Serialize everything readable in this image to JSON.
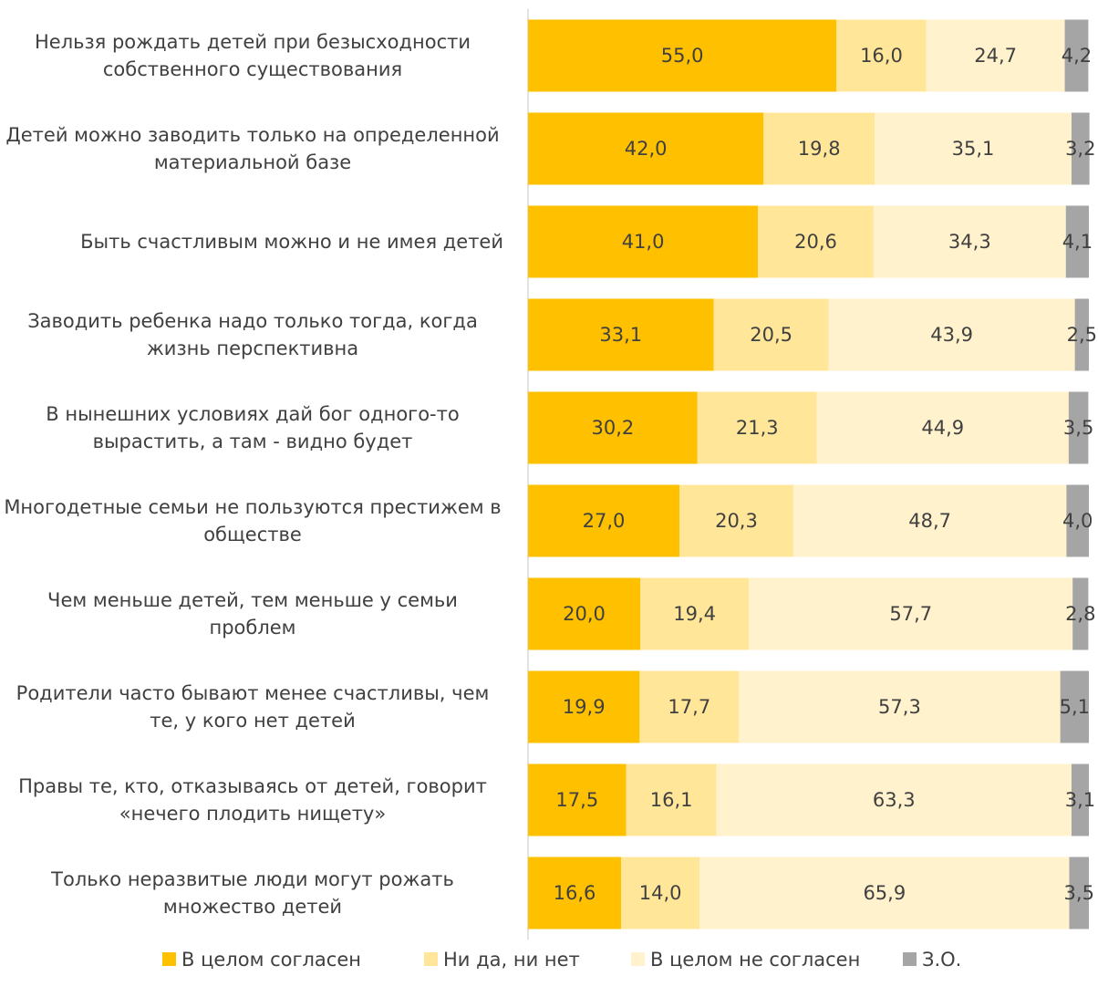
{
  "chart_data": {
    "type": "stacked_barh",
    "categories": [
      "Нельзя рождать детей при безысходности собственного существования",
      "Детей можно заводить только на определенной материальной базе",
      "Быть счастливым можно и не имея детей",
      "Заводить ребенка надо только тогда, когда жизнь перспективна",
      "В нынешних условиях дай бог одного-то вырастить, а там - видно будет",
      "Многодетные семьи не пользуются престижем в обществе",
      "Чем меньше детей, тем меньше у семьи проблем",
      "Родители часто бывают менее счастливы, чем те, у кого нет детей",
      "Правы те, кто, отказываясь от детей, говорит «нечего плодить нищету»",
      "Только неразвитые люди могут рожать множество детей"
    ],
    "series": [
      {
        "name": "В целом согласен",
        "color": "#FFC000",
        "values": [
          55.0,
          42.0,
          41.0,
          33.1,
          30.2,
          27.0,
          20.0,
          19.9,
          17.5,
          16.6
        ],
        "value_labels": [
          "55,0",
          "42,0",
          "41,0",
          "33,1",
          "30,2",
          "27,0",
          "20,0",
          "19,9",
          "17,5",
          "16,6"
        ]
      },
      {
        "name": "Ни да, ни нет",
        "color": "#FFE699",
        "values": [
          16.0,
          19.8,
          20.6,
          20.5,
          21.3,
          20.3,
          19.4,
          17.7,
          16.1,
          14.0
        ],
        "value_labels": [
          "16,0",
          "19,8",
          "20,6",
          "20,5",
          "21,3",
          "20,3",
          "19,4",
          "17,7",
          "16,1",
          "14,0"
        ]
      },
      {
        "name": "В целом не согласен",
        "color": "#FFF2CC",
        "values": [
          24.7,
          35.1,
          34.3,
          43.9,
          44.9,
          48.7,
          57.7,
          57.3,
          63.3,
          65.9
        ],
        "value_labels": [
          "24,7",
          "35,1",
          "34,3",
          "43,9",
          "44,9",
          "48,7",
          "57,7",
          "57,3",
          "63,3",
          "65,9"
        ]
      },
      {
        "name": "З.О.",
        "color": "#A5A5A5",
        "values": [
          4.2,
          3.2,
          4.1,
          2.5,
          3.5,
          4.0,
          2.8,
          5.1,
          3.1,
          3.5
        ],
        "value_labels": [
          "4,2",
          "3,2",
          "4,1",
          "2,5",
          "3,5",
          "4,0",
          "2,8",
          "5,1",
          "3,1",
          "3,5"
        ]
      }
    ],
    "xlim": [
      0,
      100
    ],
    "legend": "bottom"
  }
}
